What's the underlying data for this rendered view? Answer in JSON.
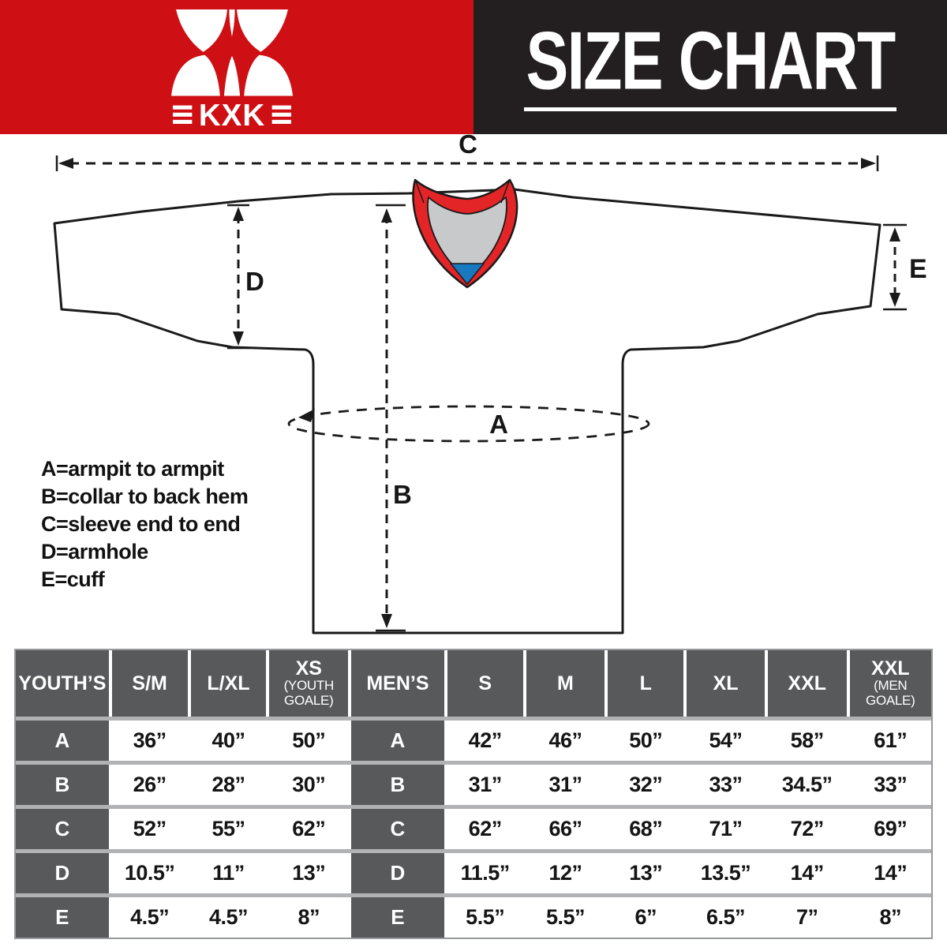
{
  "brand": {
    "logo_text": "KXK",
    "logo_symbol": "kxk-x-monogram"
  },
  "header": {
    "title": "SIZE CHART"
  },
  "diagram": {
    "dimension_labels": {
      "A": "A",
      "B": "B",
      "C": "C",
      "D": "D",
      "E": "E"
    },
    "legend": [
      "A=armpit to armpit",
      "B=collar to back hem",
      "C=sleeve end to end",
      "D=armhole",
      "E=cuff"
    ],
    "colors": {
      "collar_trim": "#e42528",
      "collar_inner": "#c8c9cb",
      "collar_insert": "#1879bf"
    }
  },
  "size_tables": {
    "youth": {
      "corner_label": "YOUTH’S",
      "columns": [
        {
          "main": "S/M",
          "sub": ""
        },
        {
          "main": "L/XL",
          "sub": ""
        },
        {
          "main": "XS",
          "sub": "(YOUTH GOALE)"
        }
      ],
      "rows": [
        {
          "label": "A",
          "values": [
            "36”",
            "40”",
            "50”"
          ]
        },
        {
          "label": "B",
          "values": [
            "26”",
            "28”",
            "30”"
          ]
        },
        {
          "label": "C",
          "values": [
            "52”",
            "55”",
            "62”"
          ]
        },
        {
          "label": "D",
          "values": [
            "10.5”",
            "11”",
            "13”"
          ]
        },
        {
          "label": "E",
          "values": [
            "4.5”",
            "4.5”",
            "8”"
          ]
        }
      ]
    },
    "men": {
      "corner_label": "MEN’S",
      "columns": [
        {
          "main": "S",
          "sub": ""
        },
        {
          "main": "M",
          "sub": ""
        },
        {
          "main": "L",
          "sub": ""
        },
        {
          "main": "XL",
          "sub": ""
        },
        {
          "main": "XXL",
          "sub": ""
        },
        {
          "main": "XXL",
          "sub": "(MEN GOALE)"
        }
      ],
      "rows": [
        {
          "label": "A",
          "values": [
            "42”",
            "46”",
            "50”",
            "54”",
            "58”",
            "61”"
          ]
        },
        {
          "label": "B",
          "values": [
            "31”",
            "31”",
            "32”",
            "33”",
            "34.5”",
            "33”"
          ]
        },
        {
          "label": "C",
          "values": [
            "62”",
            "66”",
            "68”",
            "71”",
            "72”",
            "69”"
          ]
        },
        {
          "label": "D",
          "values": [
            "11.5”",
            "12”",
            "13”",
            "13.5”",
            "14”",
            "14”"
          ]
        },
        {
          "label": "E",
          "values": [
            "5.5”",
            "5.5”",
            "6”",
            "6.5”",
            "7”",
            "8”"
          ]
        }
      ]
    }
  },
  "colors": {
    "brand_red": "#ce1015",
    "header_black": "#231f20",
    "table_head_gray": "#58595b",
    "row_gap_gray": "#b0b2b4"
  }
}
